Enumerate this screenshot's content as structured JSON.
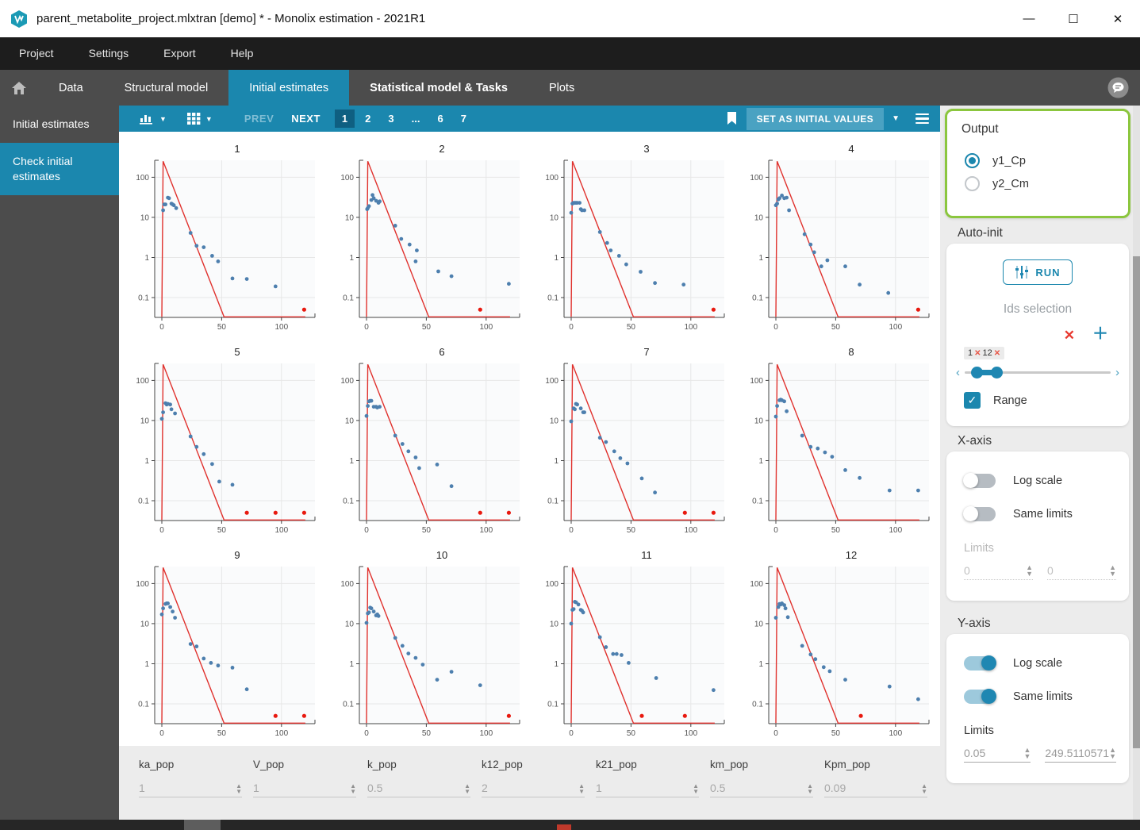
{
  "window": {
    "title": "parent_metabolite_project.mlxtran [demo] * - Monolix estimation - 2021R1",
    "controls": {
      "minimize": "—",
      "maximize": "☐",
      "close": "✕"
    }
  },
  "menu": {
    "items": [
      "Project",
      "Settings",
      "Export",
      "Help"
    ]
  },
  "tabs": {
    "items": [
      {
        "label": "Data",
        "active": false,
        "bold": false
      },
      {
        "label": "Structural model",
        "active": false,
        "bold": false
      },
      {
        "label": "Initial estimates",
        "active": true,
        "bold": false
      },
      {
        "label": "Statistical model & Tasks",
        "active": false,
        "bold": true
      },
      {
        "label": "Plots",
        "active": false,
        "bold": false
      }
    ]
  },
  "sidebar": {
    "items": [
      {
        "label": "Initial estimates",
        "active": false
      },
      {
        "label": "Check initial estimates",
        "active": true
      }
    ]
  },
  "toolbar": {
    "prev_label": "PREV",
    "next_label": "NEXT",
    "pages": [
      "1",
      "2",
      "3",
      "...",
      "6",
      "7"
    ],
    "active_page": "1",
    "set_initial_values_label": "SET AS INITIAL VALUES"
  },
  "colors": {
    "accent": "#1b87ae",
    "accent_dark": "#0f5f81",
    "highlight_green": "#8bc63e",
    "curve_red": "#e0312d",
    "dot_blue": "#4d7fae",
    "dot_red": "#e8190f"
  },
  "chart_data": {
    "type": "scatter",
    "note": "12 per-individual plots; blue observed points, red censored points at 0.05, red prediction line",
    "x_ticks": [
      0,
      50,
      100
    ],
    "y_ticks": [
      "100",
      "10",
      "1",
      "0.1"
    ],
    "y_log": true,
    "y_range": [
      0.032,
      265
    ],
    "x_range": [
      -6,
      128
    ],
    "prediction_line": [
      [
        0,
        0.033
      ],
      [
        1,
        250
      ],
      [
        52,
        0.033
      ],
      [
        120,
        0.033
      ]
    ],
    "items": [
      {
        "title": "1",
        "points": [
          [
            1,
            15
          ],
          [
            2,
            21
          ],
          [
            3,
            21
          ],
          [
            5,
            31
          ],
          [
            6,
            30
          ],
          [
            8,
            22
          ],
          [
            9,
            21
          ],
          [
            10,
            20
          ],
          [
            12,
            17
          ],
          [
            24,
            4.1
          ],
          [
            29,
            1.95
          ],
          [
            35,
            1.8
          ],
          [
            42,
            1.1
          ],
          [
            47,
            0.8
          ],
          [
            59,
            0.3
          ],
          [
            71,
            0.29
          ],
          [
            95,
            0.19
          ]
        ],
        "red_points": [
          [
            119,
            0.05
          ]
        ]
      },
      {
        "title": "2",
        "points": [
          [
            0.5,
            16
          ],
          [
            1,
            17
          ],
          [
            2,
            19
          ],
          [
            4,
            27
          ],
          [
            5,
            36
          ],
          [
            6,
            30
          ],
          [
            8,
            26
          ],
          [
            10,
            23
          ],
          [
            11,
            25
          ],
          [
            24,
            6.2
          ],
          [
            29,
            2.9
          ],
          [
            36,
            2.1
          ],
          [
            41,
            0.8
          ],
          [
            42,
            1.5
          ],
          [
            60,
            0.45
          ],
          [
            71,
            0.34
          ],
          [
            119,
            0.22
          ]
        ],
        "red_points": [
          [
            95,
            0.05
          ]
        ]
      },
      {
        "title": "3",
        "points": [
          [
            0,
            13
          ],
          [
            1,
            22
          ],
          [
            2,
            23
          ],
          [
            3,
            23
          ],
          [
            4,
            23
          ],
          [
            5,
            23
          ],
          [
            7,
            23
          ],
          [
            8,
            16
          ],
          [
            9,
            15
          ],
          [
            11,
            15
          ],
          [
            24,
            4.3
          ],
          [
            30,
            2.3
          ],
          [
            33,
            1.5
          ],
          [
            40,
            1.1
          ],
          [
            46,
            0.67
          ],
          [
            58,
            0.44
          ],
          [
            70,
            0.23
          ],
          [
            94,
            0.21
          ]
        ],
        "red_points": [
          [
            119,
            0.05
          ]
        ]
      },
      {
        "title": "4",
        "points": [
          [
            0,
            20
          ],
          [
            1,
            22
          ],
          [
            2,
            28
          ],
          [
            3,
            30
          ],
          [
            5,
            35
          ],
          [
            7,
            30
          ],
          [
            9,
            31
          ],
          [
            11,
            15
          ],
          [
            24,
            3.8
          ],
          [
            29,
            2.1
          ],
          [
            32,
            1.35
          ],
          [
            38,
            0.6
          ],
          [
            43,
            0.85
          ],
          [
            58,
            0.6
          ],
          [
            70,
            0.21
          ],
          [
            94,
            0.13
          ]
        ],
        "red_points": [
          [
            119,
            0.05
          ]
        ]
      },
      {
        "title": "5",
        "points": [
          [
            0,
            11
          ],
          [
            1,
            16
          ],
          [
            3,
            27
          ],
          [
            4,
            25
          ],
          [
            5,
            26
          ],
          [
            7,
            25
          ],
          [
            8,
            19
          ],
          [
            11,
            15
          ],
          [
            24,
            4.0
          ],
          [
            29,
            2.2
          ],
          [
            35,
            1.45
          ],
          [
            42,
            0.82
          ],
          [
            48,
            0.3
          ],
          [
            59,
            0.25
          ]
        ],
        "red_points": [
          [
            71,
            0.05
          ],
          [
            95,
            0.05
          ],
          [
            119,
            0.05
          ]
        ]
      },
      {
        "title": "6",
        "points": [
          [
            0,
            13
          ],
          [
            1,
            23
          ],
          [
            2,
            30
          ],
          [
            3,
            31
          ],
          [
            4,
            31
          ],
          [
            6,
            22
          ],
          [
            8,
            22
          ],
          [
            9,
            21
          ],
          [
            11,
            22
          ],
          [
            24,
            4.2
          ],
          [
            30,
            2.6
          ],
          [
            35,
            1.7
          ],
          [
            41,
            1.2
          ],
          [
            44,
            0.65
          ],
          [
            59,
            0.8
          ],
          [
            71,
            0.23
          ]
        ],
        "red_points": [
          [
            95,
            0.05
          ],
          [
            119,
            0.05
          ]
        ]
      },
      {
        "title": "7",
        "points": [
          [
            0,
            9.5
          ],
          [
            2,
            20
          ],
          [
            3,
            19
          ],
          [
            4,
            26
          ],
          [
            5,
            25
          ],
          [
            8,
            20
          ],
          [
            10,
            16
          ],
          [
            11,
            16
          ],
          [
            24,
            3.7
          ],
          [
            29,
            2.9
          ],
          [
            36,
            1.7
          ],
          [
            41,
            1.15
          ],
          [
            47,
            0.85
          ],
          [
            59,
            0.36
          ],
          [
            70,
            0.16
          ]
        ],
        "red_points": [
          [
            95,
            0.05
          ],
          [
            119,
            0.05
          ]
        ]
      },
      {
        "title": "8",
        "points": [
          [
            0,
            12.5
          ],
          [
            1,
            23
          ],
          [
            3,
            32
          ],
          [
            4,
            33
          ],
          [
            5,
            32
          ],
          [
            7,
            30
          ],
          [
            9,
            17
          ],
          [
            22,
            4.2
          ],
          [
            29,
            2.2
          ],
          [
            35,
            2.0
          ],
          [
            41,
            1.6
          ],
          [
            47,
            1.25
          ],
          [
            58,
            0.58
          ],
          [
            70,
            0.37
          ],
          [
            95,
            0.18
          ],
          [
            119,
            0.18
          ]
        ],
        "red_points": []
      },
      {
        "title": "9",
        "points": [
          [
            0,
            17
          ],
          [
            1,
            24
          ],
          [
            3,
            31
          ],
          [
            4,
            32
          ],
          [
            5,
            32
          ],
          [
            7,
            26
          ],
          [
            9,
            20
          ],
          [
            11,
            14
          ],
          [
            24,
            3.1
          ],
          [
            29,
            2.7
          ],
          [
            35,
            1.35
          ],
          [
            41,
            1.05
          ],
          [
            47,
            0.9
          ],
          [
            59,
            0.8
          ],
          [
            71,
            0.23
          ]
        ],
        "red_points": [
          [
            95,
            0.05
          ],
          [
            119,
            0.05
          ]
        ]
      },
      {
        "title": "10",
        "points": [
          [
            0,
            10.5
          ],
          [
            1,
            18
          ],
          [
            2,
            19
          ],
          [
            3,
            25
          ],
          [
            4,
            24
          ],
          [
            6,
            20
          ],
          [
            8,
            16
          ],
          [
            9,
            17
          ],
          [
            10,
            15.5
          ],
          [
            24,
            4.4
          ],
          [
            30,
            2.8
          ],
          [
            35,
            1.8
          ],
          [
            41,
            1.4
          ],
          [
            47,
            0.95
          ],
          [
            59,
            0.4
          ],
          [
            71,
            0.63
          ],
          [
            95,
            0.29
          ]
        ],
        "red_points": [
          [
            119,
            0.05
          ]
        ]
      },
      {
        "title": "11",
        "points": [
          [
            0,
            10
          ],
          [
            1,
            22
          ],
          [
            2,
            23
          ],
          [
            3,
            35
          ],
          [
            4,
            34
          ],
          [
            6,
            30
          ],
          [
            8,
            22
          ],
          [
            9,
            21
          ],
          [
            10,
            19
          ],
          [
            24,
            4.6
          ],
          [
            29,
            2.6
          ],
          [
            35,
            1.75
          ],
          [
            38,
            1.75
          ],
          [
            42,
            1.65
          ],
          [
            48,
            1.05
          ],
          [
            71,
            0.44
          ],
          [
            119,
            0.22
          ]
        ],
        "red_points": [
          [
            59,
            0.05
          ],
          [
            95,
            0.05
          ]
        ]
      },
      {
        "title": "12",
        "points": [
          [
            0,
            14
          ],
          [
            2,
            26
          ],
          [
            3,
            31
          ],
          [
            4,
            30
          ],
          [
            5,
            32
          ],
          [
            7,
            29
          ],
          [
            8,
            24
          ],
          [
            10,
            14.5
          ],
          [
            22,
            2.8
          ],
          [
            29,
            1.7
          ],
          [
            33,
            1.3
          ],
          [
            40,
            0.82
          ],
          [
            45,
            0.65
          ],
          [
            58,
            0.4
          ],
          [
            95,
            0.27
          ],
          [
            119,
            0.13
          ]
        ],
        "red_points": [
          [
            71,
            0.05
          ]
        ]
      }
    ]
  },
  "parameters": [
    {
      "name": "ka_pop",
      "value": "1"
    },
    {
      "name": "V_pop",
      "value": "1"
    },
    {
      "name": "k_pop",
      "value": "0.5"
    },
    {
      "name": "k12_pop",
      "value": "2"
    },
    {
      "name": "k21_pop",
      "value": "1"
    },
    {
      "name": "km_pop",
      "value": "0.5"
    },
    {
      "name": "Kpm_pop",
      "value": "0.09"
    }
  ],
  "panel": {
    "output": {
      "title": "Output",
      "options": [
        {
          "label": "y1_Cp",
          "selected": true
        },
        {
          "label": "y2_Cm",
          "selected": false
        }
      ]
    },
    "autoinit": {
      "title": "Auto-init",
      "run_label": "RUN",
      "ids_title": "Ids selection",
      "tag_values": [
        "1",
        "12"
      ],
      "range_label": "Range",
      "range_checked": true
    },
    "xaxis": {
      "title": "X-axis",
      "log_scale_label": "Log scale",
      "log_scale_on": false,
      "same_limits_label": "Same limits",
      "same_limits_on": false,
      "limits_label": "Limits",
      "min": "0",
      "max": "0"
    },
    "yaxis": {
      "title": "Y-axis",
      "log_scale_label": "Log scale",
      "log_scale_on": true,
      "same_limits_label": "Same limits",
      "same_limits_on": true,
      "limits_label": "Limits",
      "min": "0.05",
      "max": "249.5110571"
    }
  }
}
